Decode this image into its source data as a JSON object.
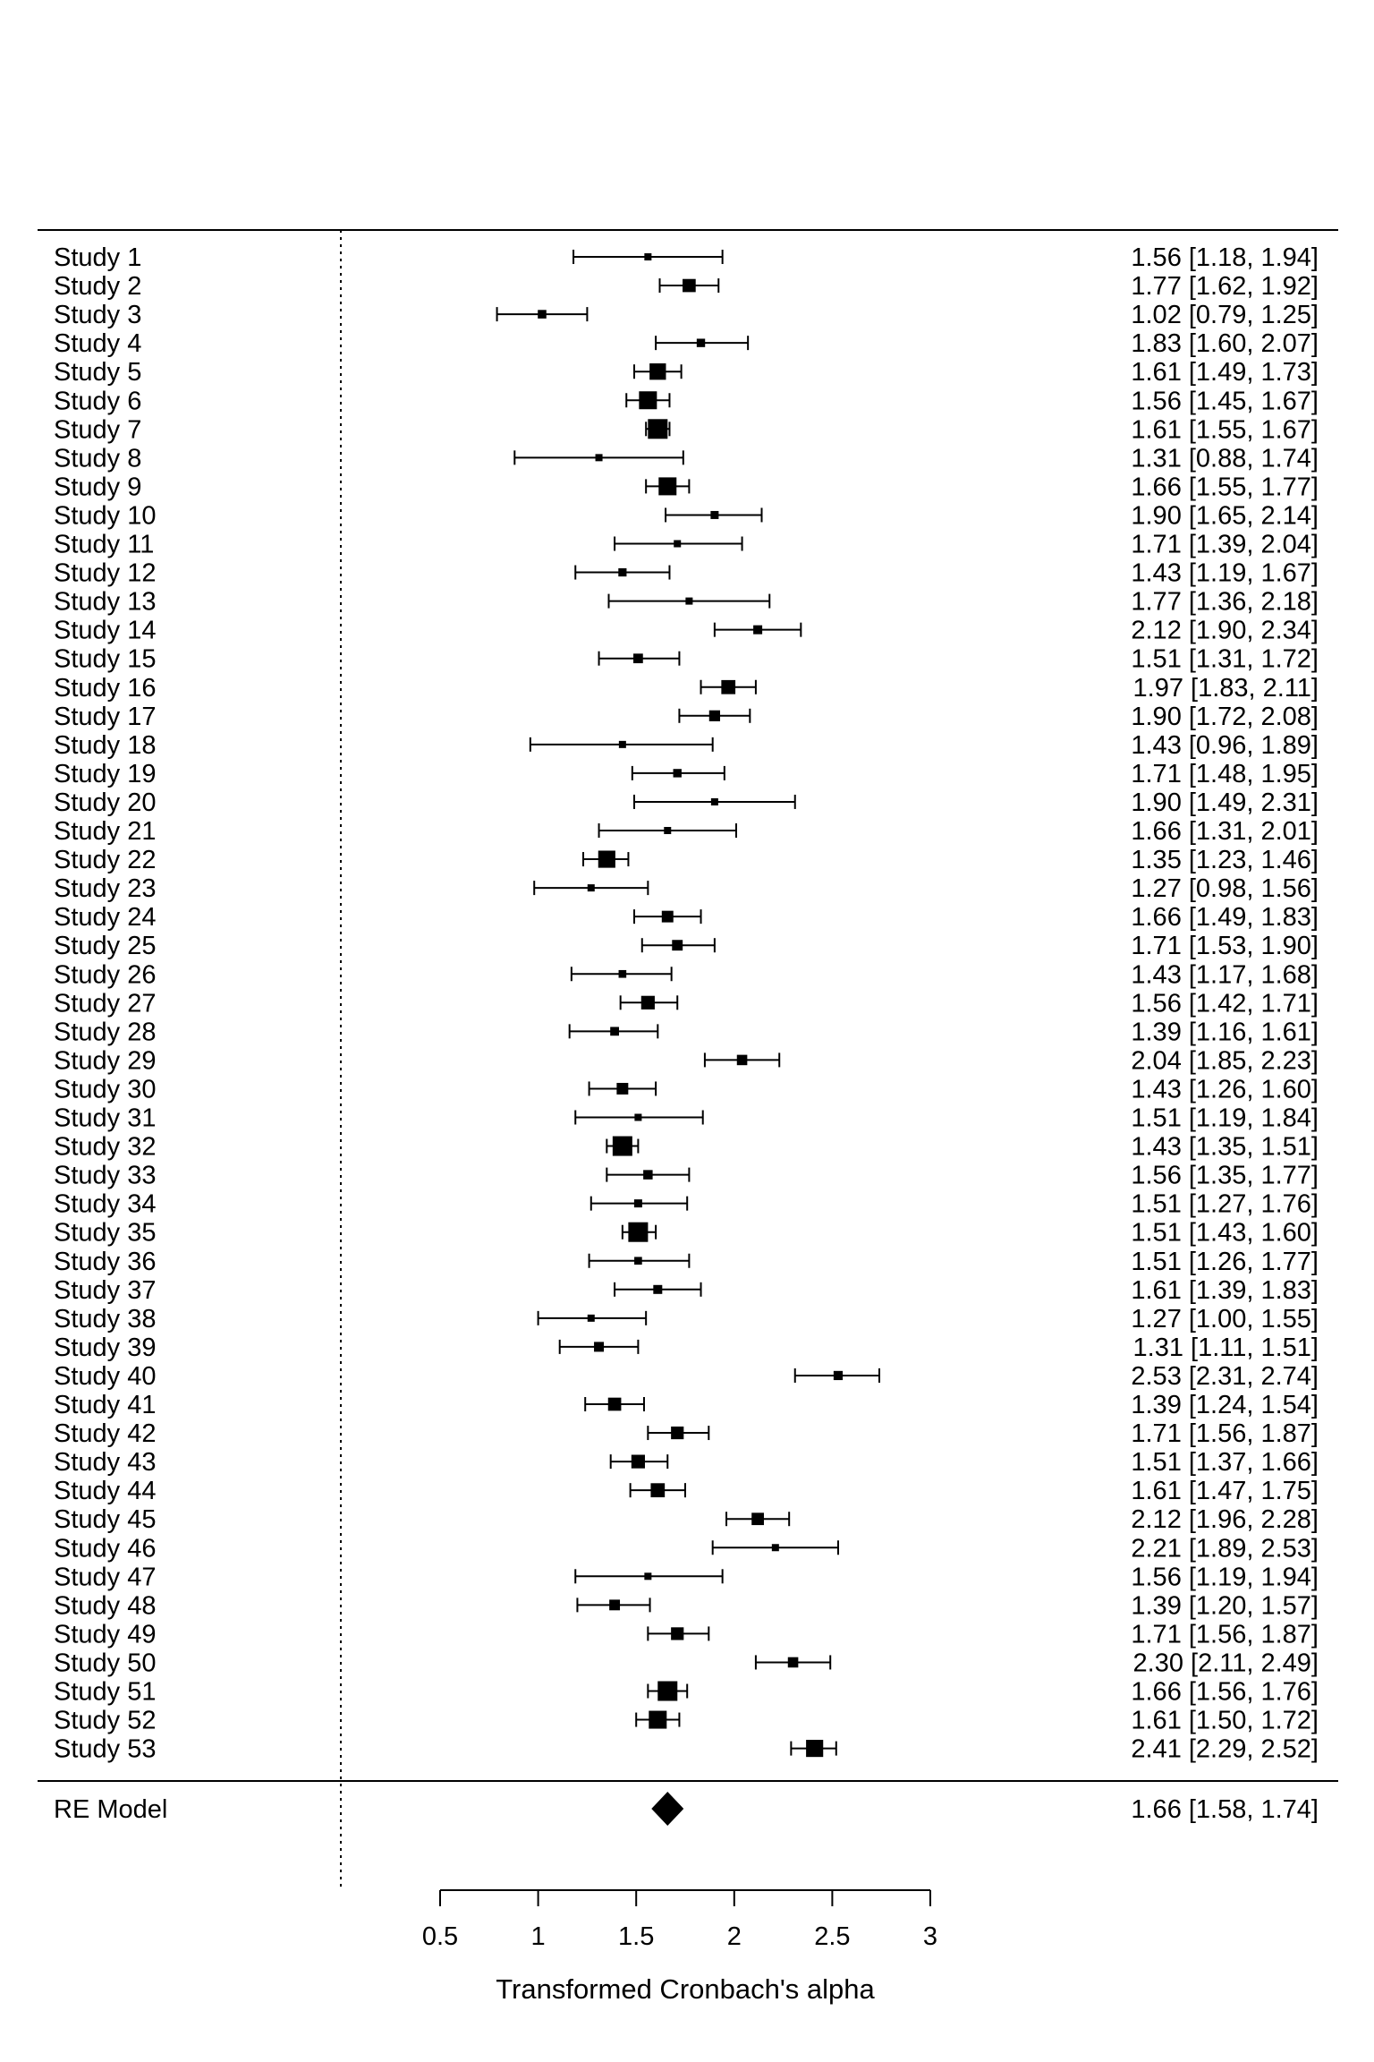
{
  "chart_data": {
    "type": "forest",
    "xlabel": "Transformed Cronbach's alpha",
    "xlim": [
      0.5,
      3
    ],
    "xticks": [
      0.5,
      1,
      1.5,
      2,
      2.5,
      3
    ],
    "xtick_labels": [
      "0.5",
      "1",
      "1.5",
      "2",
      "2.5",
      "3"
    ],
    "reference_line": 0,
    "studies": [
      {
        "label": "Study 1",
        "estimate": 1.56,
        "lower": 1.18,
        "upper": 1.94,
        "text": "1.56 [1.18, 1.94]"
      },
      {
        "label": "Study 2",
        "estimate": 1.77,
        "lower": 1.62,
        "upper": 1.92,
        "text": "1.77 [1.62, 1.92]"
      },
      {
        "label": "Study 3",
        "estimate": 1.02,
        "lower": 0.79,
        "upper": 1.25,
        "text": "1.02 [0.79, 1.25]"
      },
      {
        "label": "Study 4",
        "estimate": 1.83,
        "lower": 1.6,
        "upper": 2.07,
        "text": "1.83 [1.60, 2.07]"
      },
      {
        "label": "Study 5",
        "estimate": 1.61,
        "lower": 1.49,
        "upper": 1.73,
        "text": "1.61 [1.49, 1.73]"
      },
      {
        "label": "Study 6",
        "estimate": 1.56,
        "lower": 1.45,
        "upper": 1.67,
        "text": "1.56 [1.45, 1.67]"
      },
      {
        "label": "Study 7",
        "estimate": 1.61,
        "lower": 1.55,
        "upper": 1.67,
        "text": "1.61 [1.55, 1.67]"
      },
      {
        "label": "Study 8",
        "estimate": 1.31,
        "lower": 0.88,
        "upper": 1.74,
        "text": "1.31 [0.88, 1.74]"
      },
      {
        "label": "Study 9",
        "estimate": 1.66,
        "lower": 1.55,
        "upper": 1.77,
        "text": "1.66 [1.55, 1.77]"
      },
      {
        "label": "Study 10",
        "estimate": 1.9,
        "lower": 1.65,
        "upper": 2.14,
        "text": "1.90 [1.65, 2.14]"
      },
      {
        "label": "Study 11",
        "estimate": 1.71,
        "lower": 1.39,
        "upper": 2.04,
        "text": "1.71 [1.39, 2.04]"
      },
      {
        "label": "Study 12",
        "estimate": 1.43,
        "lower": 1.19,
        "upper": 1.67,
        "text": "1.43 [1.19, 1.67]"
      },
      {
        "label": "Study 13",
        "estimate": 1.77,
        "lower": 1.36,
        "upper": 2.18,
        "text": "1.77 [1.36, 2.18]"
      },
      {
        "label": "Study 14",
        "estimate": 2.12,
        "lower": 1.9,
        "upper": 2.34,
        "text": "2.12 [1.90, 2.34]"
      },
      {
        "label": "Study 15",
        "estimate": 1.51,
        "lower": 1.31,
        "upper": 1.72,
        "text": "1.51 [1.31, 1.72]"
      },
      {
        "label": "Study 16",
        "estimate": 1.97,
        "lower": 1.83,
        "upper": 2.11,
        "text": "1.97 [1.83, 2.11]"
      },
      {
        "label": "Study 17",
        "estimate": 1.9,
        "lower": 1.72,
        "upper": 2.08,
        "text": "1.90 [1.72, 2.08]"
      },
      {
        "label": "Study 18",
        "estimate": 1.43,
        "lower": 0.96,
        "upper": 1.89,
        "text": "1.43 [0.96, 1.89]"
      },
      {
        "label": "Study 19",
        "estimate": 1.71,
        "lower": 1.48,
        "upper": 1.95,
        "text": "1.71 [1.48, 1.95]"
      },
      {
        "label": "Study 20",
        "estimate": 1.9,
        "lower": 1.49,
        "upper": 2.31,
        "text": "1.90 [1.49, 2.31]"
      },
      {
        "label": "Study 21",
        "estimate": 1.66,
        "lower": 1.31,
        "upper": 2.01,
        "text": "1.66 [1.31, 2.01]"
      },
      {
        "label": "Study 22",
        "estimate": 1.35,
        "lower": 1.23,
        "upper": 1.46,
        "text": "1.35 [1.23, 1.46]"
      },
      {
        "label": "Study 23",
        "estimate": 1.27,
        "lower": 0.98,
        "upper": 1.56,
        "text": "1.27 [0.98, 1.56]"
      },
      {
        "label": "Study 24",
        "estimate": 1.66,
        "lower": 1.49,
        "upper": 1.83,
        "text": "1.66 [1.49, 1.83]"
      },
      {
        "label": "Study 25",
        "estimate": 1.71,
        "lower": 1.53,
        "upper": 1.9,
        "text": "1.71 [1.53, 1.90]"
      },
      {
        "label": "Study 26",
        "estimate": 1.43,
        "lower": 1.17,
        "upper": 1.68,
        "text": "1.43 [1.17, 1.68]"
      },
      {
        "label": "Study 27",
        "estimate": 1.56,
        "lower": 1.42,
        "upper": 1.71,
        "text": "1.56 [1.42, 1.71]"
      },
      {
        "label": "Study 28",
        "estimate": 1.39,
        "lower": 1.16,
        "upper": 1.61,
        "text": "1.39 [1.16, 1.61]"
      },
      {
        "label": "Study 29",
        "estimate": 2.04,
        "lower": 1.85,
        "upper": 2.23,
        "text": "2.04 [1.85, 2.23]"
      },
      {
        "label": "Study 30",
        "estimate": 1.43,
        "lower": 1.26,
        "upper": 1.6,
        "text": "1.43 [1.26, 1.60]"
      },
      {
        "label": "Study 31",
        "estimate": 1.51,
        "lower": 1.19,
        "upper": 1.84,
        "text": "1.51 [1.19, 1.84]"
      },
      {
        "label": "Study 32",
        "estimate": 1.43,
        "lower": 1.35,
        "upper": 1.51,
        "text": "1.43 [1.35, 1.51]"
      },
      {
        "label": "Study 33",
        "estimate": 1.56,
        "lower": 1.35,
        "upper": 1.77,
        "text": "1.56 [1.35, 1.77]"
      },
      {
        "label": "Study 34",
        "estimate": 1.51,
        "lower": 1.27,
        "upper": 1.76,
        "text": "1.51 [1.27, 1.76]"
      },
      {
        "label": "Study 35",
        "estimate": 1.51,
        "lower": 1.43,
        "upper": 1.6,
        "text": "1.51 [1.43, 1.60]"
      },
      {
        "label": "Study 36",
        "estimate": 1.51,
        "lower": 1.26,
        "upper": 1.77,
        "text": "1.51 [1.26, 1.77]"
      },
      {
        "label": "Study 37",
        "estimate": 1.61,
        "lower": 1.39,
        "upper": 1.83,
        "text": "1.61 [1.39, 1.83]"
      },
      {
        "label": "Study 38",
        "estimate": 1.27,
        "lower": 1.0,
        "upper": 1.55,
        "text": "1.27 [1.00, 1.55]"
      },
      {
        "label": "Study 39",
        "estimate": 1.31,
        "lower": 1.11,
        "upper": 1.51,
        "text": "1.31 [1.11, 1.51]"
      },
      {
        "label": "Study 40",
        "estimate": 2.53,
        "lower": 2.31,
        "upper": 2.74,
        "text": "2.53 [2.31, 2.74]"
      },
      {
        "label": "Study 41",
        "estimate": 1.39,
        "lower": 1.24,
        "upper": 1.54,
        "text": "1.39 [1.24, 1.54]"
      },
      {
        "label": "Study 42",
        "estimate": 1.71,
        "lower": 1.56,
        "upper": 1.87,
        "text": "1.71 [1.56, 1.87]"
      },
      {
        "label": "Study 43",
        "estimate": 1.51,
        "lower": 1.37,
        "upper": 1.66,
        "text": "1.51 [1.37, 1.66]"
      },
      {
        "label": "Study 44",
        "estimate": 1.61,
        "lower": 1.47,
        "upper": 1.75,
        "text": "1.61 [1.47, 1.75]"
      },
      {
        "label": "Study 45",
        "estimate": 2.12,
        "lower": 1.96,
        "upper": 2.28,
        "text": "2.12 [1.96, 2.28]"
      },
      {
        "label": "Study 46",
        "estimate": 2.21,
        "lower": 1.89,
        "upper": 2.53,
        "text": "2.21 [1.89, 2.53]"
      },
      {
        "label": "Study 47",
        "estimate": 1.56,
        "lower": 1.19,
        "upper": 1.94,
        "text": "1.56 [1.19, 1.94]"
      },
      {
        "label": "Study 48",
        "estimate": 1.39,
        "lower": 1.2,
        "upper": 1.57,
        "text": "1.39 [1.20, 1.57]"
      },
      {
        "label": "Study 49",
        "estimate": 1.71,
        "lower": 1.56,
        "upper": 1.87,
        "text": "1.71 [1.56, 1.87]"
      },
      {
        "label": "Study 50",
        "estimate": 2.3,
        "lower": 2.11,
        "upper": 2.49,
        "text": "2.30 [2.11, 2.49]"
      },
      {
        "label": "Study 51",
        "estimate": 1.66,
        "lower": 1.56,
        "upper": 1.76,
        "text": "1.66 [1.56, 1.76]"
      },
      {
        "label": "Study 52",
        "estimate": 1.61,
        "lower": 1.5,
        "upper": 1.72,
        "text": "1.61 [1.50, 1.72]"
      },
      {
        "label": "Study 53",
        "estimate": 2.41,
        "lower": 2.29,
        "upper": 2.52,
        "text": "2.41 [2.29, 2.52]"
      }
    ],
    "summary": {
      "label": "RE Model",
      "estimate": 1.66,
      "lower": 1.58,
      "upper": 1.74,
      "text": "1.66 [1.58, 1.74]"
    }
  }
}
